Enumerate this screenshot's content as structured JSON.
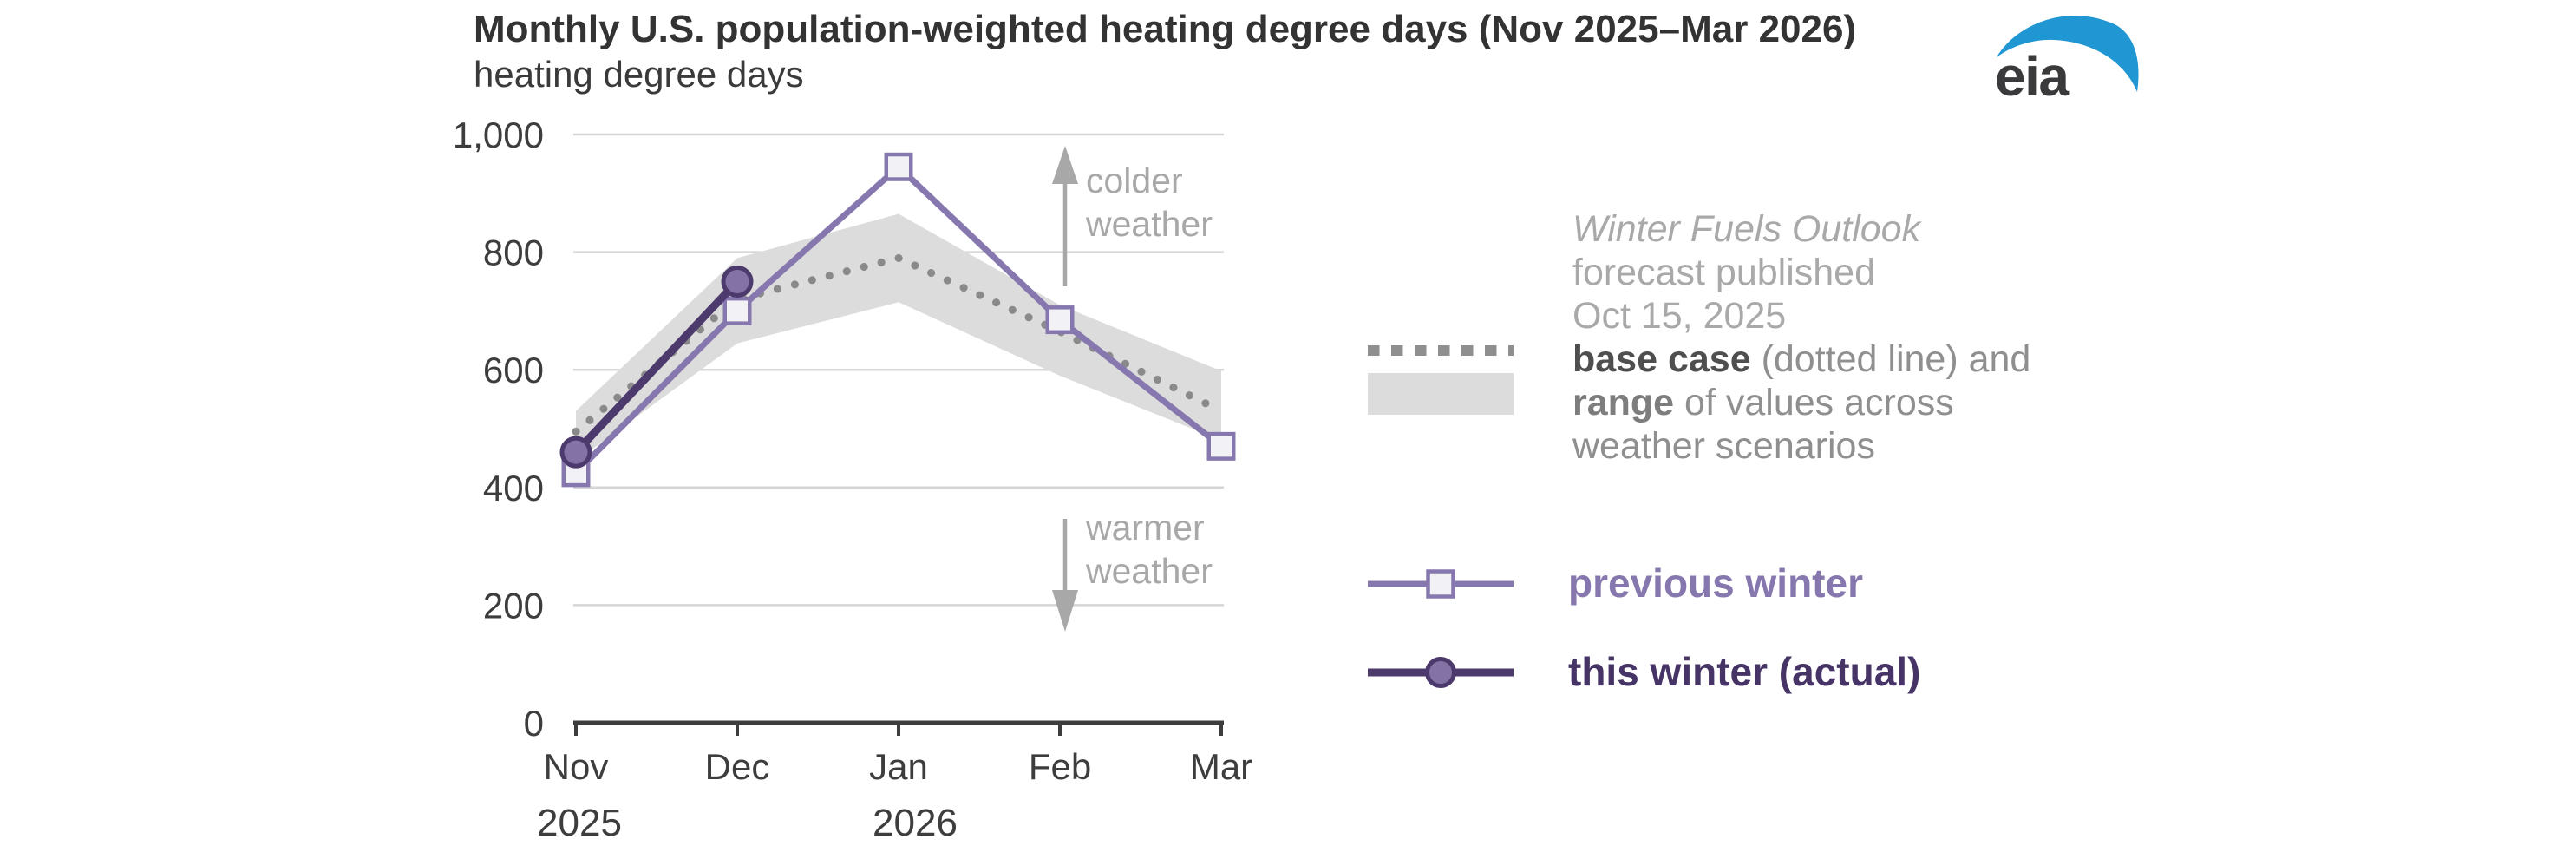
{
  "header": {
    "title": "Monthly U.S. population-weighted heating degree days (Nov 2025–Mar 2026)",
    "subtitle": "heating degree days"
  },
  "logo": {
    "text": "eia"
  },
  "annotations": {
    "colder_line1": "colder",
    "colder_line2": "weather",
    "warmer_line1": "warmer",
    "warmer_line2": "weather"
  },
  "note": {
    "source_italic": "Winter Fuels Outlook",
    "line2": "forecast published",
    "line3": "Oct 15, 2025",
    "base_case_bold": "base case",
    "base_case_rest": " (dotted line) and",
    "range_bold": "range",
    "range_rest": " of values across",
    "line6": "weather scenarios"
  },
  "legend": {
    "previous_winter": "previous winter",
    "this_winter": "this winter (actual)"
  },
  "chart_data": {
    "type": "line",
    "title": "Monthly U.S. population-weighted heating degree days (Nov 2025–Mar 2026)",
    "ylabel": "heating degree days",
    "categories": [
      "Nov",
      "Dec",
      "Jan",
      "Feb",
      "Mar"
    ],
    "x_years": [
      {
        "label": "2025",
        "month_index": 0
      },
      {
        "label": "2026",
        "month_index": 2
      }
    ],
    "y_ticks": [
      {
        "value": 0,
        "label": "0"
      },
      {
        "value": 200,
        "label": "200"
      },
      {
        "value": 400,
        "label": "400"
      },
      {
        "value": 600,
        "label": "600"
      },
      {
        "value": 800,
        "label": "800"
      },
      {
        "value": 1000,
        "label": "1,000"
      }
    ],
    "ylim": [
      0,
      1000
    ],
    "grid": true,
    "legend_position": "right",
    "series": [
      {
        "name": "forecast range (weather scenarios)",
        "type": "band",
        "low": [
          445,
          645,
          715,
          590,
          480
        ],
        "high": [
          530,
          790,
          865,
          710,
          598
        ]
      },
      {
        "name": "base case",
        "type": "dotted-line",
        "values": [
          495,
          720,
          790,
          665,
          530
        ]
      },
      {
        "name": "previous winter",
        "type": "line-square-markers",
        "values": [
          425,
          700,
          945,
          685,
          470
        ]
      },
      {
        "name": "this winter (actual)",
        "type": "line-circle-markers",
        "values": [
          460,
          750,
          null,
          null,
          null
        ]
      }
    ],
    "colors": {
      "previous_winter": "#8678ae",
      "previous_winter_marker_fill": "#f2f1f6",
      "this_winter": "#4c3a6d",
      "this_winter_marker_fill": "#8273a4",
      "base_case": "#8a8a8a",
      "range_band": "#dcdcdc",
      "gridline": "#d5d5d5",
      "axis": "#3d3d3d",
      "annotation": "#a8a8a8",
      "note_gray": "#8f8f8f",
      "logo_blue": "#2096d3"
    }
  }
}
